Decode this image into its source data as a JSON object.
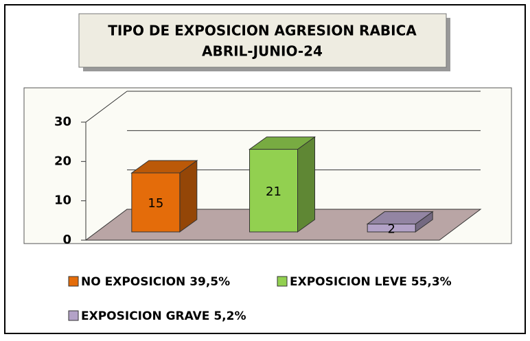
{
  "chart_data": {
    "type": "bar3d",
    "title": "TIPO DE EXPOSICION AGRESION RABICA",
    "subtitle": "ABRIL-JUNIO-24",
    "categories": [
      null
    ],
    "series": [
      {
        "name": "NO EXPOSICION 39,5%",
        "color": "#e46c0a",
        "values": [
          15
        ]
      },
      {
        "name": "EXPOSICION LEVE 55,3%",
        "color": "#92d050",
        "values": [
          21
        ]
      },
      {
        "name": "EXPOSICION GRAVE 5,2%",
        "color": "#b3a2c7",
        "values": [
          2
        ]
      }
    ],
    "ylim": [
      0,
      30
    ],
    "yticks": [
      0,
      10,
      20,
      30
    ],
    "grid": true,
    "legend": "bottom"
  }
}
